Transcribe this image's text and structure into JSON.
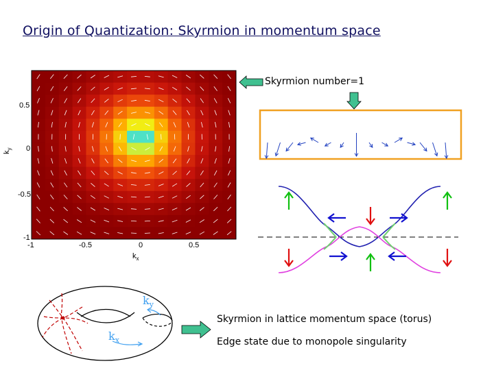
{
  "slide": {
    "title": "Origin of Quantization: Skyrmion in momentum space",
    "skyrmion_label": "Skyrmion number=1",
    "torus_text": "Skyrmion in lattice momentum space (torus)",
    "edge_text": "Edge state due to monopole singularity"
  },
  "heatmap": {
    "x_ticks": [
      "-1",
      "-0.5",
      "0",
      "0.5"
    ],
    "y_ticks": [
      "0.5",
      "0",
      "-0.5",
      "-1"
    ],
    "x_axis_label": "k",
    "x_axis_sub": "x",
    "y_axis_label": "k",
    "y_axis_sub": "y"
  },
  "torus": {
    "ky_label": "k",
    "ky_sub": "y",
    "kx_label": "k",
    "kx_sub": "x"
  },
  "colors": {
    "title": "#101060",
    "box_border": "#f0a020",
    "big_arrow": "#40c090",
    "edge_up_arrow": "#10c010",
    "edge_down_arrow": "#e01010",
    "edge_side_arrow": "#1010d0",
    "upper_band": "#2020b0",
    "lower_band": "#e040e0"
  }
}
